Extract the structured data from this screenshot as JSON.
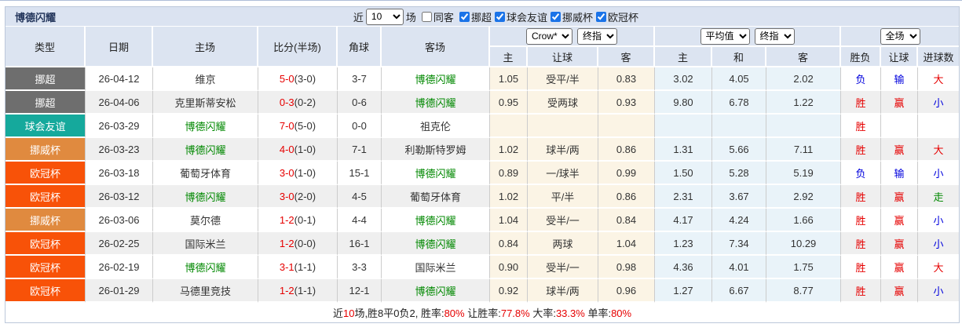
{
  "header": {
    "team": "博德闪耀",
    "near_label": "近",
    "matches_count": "10",
    "matches_unit": "场",
    "same_away": "同客",
    "leagues": [
      {
        "label": "挪超",
        "checked": true
      },
      {
        "label": "球会友谊",
        "checked": true
      },
      {
        "label": "挪威杯",
        "checked": true
      },
      {
        "label": "欧冠杯",
        "checked": true
      }
    ]
  },
  "columns": {
    "type": "类型",
    "date": "日期",
    "home": "主场",
    "score": "比分(半场)",
    "corner": "角球",
    "away": "客场",
    "handicap_sub": [
      "主",
      "让球",
      "客"
    ],
    "europe_sub": [
      "主",
      "和",
      "客"
    ],
    "result_sub": [
      "胜负",
      "让球",
      "进球数"
    ],
    "selects": {
      "bookmaker": "Crow*",
      "handicap_final": "终指",
      "europe_avg": "平均值",
      "europe_final": "终指",
      "scope": "全场"
    }
  },
  "type_colors": {
    "挪超": "#6e6e6e",
    "球会友谊": "#15a99c",
    "挪威杯": "#e08a3f",
    "欧冠杯": "#f85208"
  },
  "accent_colors": {
    "red": "#e60000",
    "blue": "#0000dd",
    "green": "#008800"
  },
  "rows": [
    {
      "type": "挪超",
      "date": "26-04-12",
      "home": "维京",
      "home_team": false,
      "score": "5-0",
      "half": "(3-0)",
      "corner": "3-7",
      "away": "博德闪耀",
      "away_team": true,
      "o1": "1.05",
      "o2": "受平/半",
      "o3": "0.83",
      "e1": "3.02",
      "e2": "4.05",
      "e3": "2.02",
      "result": "负",
      "result_c": "blue",
      "asian": "输",
      "asian_c": "blue",
      "goals": "大",
      "goals_c": "red"
    },
    {
      "type": "挪超",
      "date": "26-04-06",
      "home": "克里斯蒂安松",
      "home_team": false,
      "score": "0-3",
      "half": "(0-2)",
      "corner": "0-6",
      "away": "博德闪耀",
      "away_team": true,
      "o1": "0.95",
      "o2": "受两球",
      "o3": "0.93",
      "e1": "9.80",
      "e2": "6.78",
      "e3": "1.22",
      "result": "胜",
      "result_c": "red",
      "asian": "赢",
      "asian_c": "red",
      "goals": "小",
      "goals_c": "blue"
    },
    {
      "type": "球会友谊",
      "date": "26-03-29",
      "home": "博德闪耀",
      "home_team": true,
      "score": "7-0",
      "half": "(5-0)",
      "corner": "0-0",
      "away": "祖克伦",
      "away_team": false,
      "o1": "",
      "o2": "",
      "o3": "",
      "e1": "",
      "e2": "",
      "e3": "",
      "result": "胜",
      "result_c": "red",
      "asian": "",
      "asian_c": null,
      "goals": "",
      "goals_c": null
    },
    {
      "type": "挪威杯",
      "date": "26-03-23",
      "home": "博德闪耀",
      "home_team": true,
      "score": "4-0",
      "half": "(1-0)",
      "corner": "7-1",
      "away": "利勒斯特罗姆",
      "away_team": false,
      "o1": "1.02",
      "o2": "球半/两",
      "o3": "0.86",
      "e1": "1.31",
      "e2": "5.66",
      "e3": "7.11",
      "result": "胜",
      "result_c": "red",
      "asian": "赢",
      "asian_c": "red",
      "goals": "大",
      "goals_c": "red"
    },
    {
      "type": "欧冠杯",
      "date": "26-03-18",
      "home": "葡萄牙体育",
      "home_team": false,
      "score": "3-0",
      "half": "(1-0)",
      "corner": "15-1",
      "away": "博德闪耀",
      "away_team": true,
      "o1": "0.89",
      "o2": "一/球半",
      "o3": "0.99",
      "e1": "1.50",
      "e2": "5.28",
      "e3": "5.19",
      "result": "负",
      "result_c": "blue",
      "asian": "输",
      "asian_c": "blue",
      "goals": "小",
      "goals_c": "blue"
    },
    {
      "type": "欧冠杯",
      "date": "26-03-12",
      "home": "博德闪耀",
      "home_team": true,
      "score": "3-0",
      "half": "(2-0)",
      "corner": "4-5",
      "away": "葡萄牙体育",
      "away_team": false,
      "o1": "1.02",
      "o2": "平/半",
      "o3": "0.86",
      "e1": "2.31",
      "e2": "3.67",
      "e3": "2.92",
      "result": "胜",
      "result_c": "red",
      "asian": "赢",
      "asian_c": "red",
      "goals": "走",
      "goals_c": "green"
    },
    {
      "type": "挪威杯",
      "date": "26-03-06",
      "home": "莫尔德",
      "home_team": false,
      "score": "1-2",
      "half": "(0-1)",
      "corner": "4-4",
      "away": "博德闪耀",
      "away_team": true,
      "o1": "1.04",
      "o2": "受半/一",
      "o3": "0.84",
      "e1": "4.17",
      "e2": "4.24",
      "e3": "1.66",
      "result": "胜",
      "result_c": "red",
      "asian": "赢",
      "asian_c": "red",
      "goals": "小",
      "goals_c": "blue"
    },
    {
      "type": "欧冠杯",
      "date": "26-02-25",
      "home": "国际米兰",
      "home_team": false,
      "score": "1-2",
      "half": "(0-0)",
      "corner": "16-1",
      "away": "博德闪耀",
      "away_team": true,
      "o1": "0.84",
      "o2": "两球",
      "o3": "1.04",
      "e1": "1.23",
      "e2": "7.34",
      "e3": "10.29",
      "result": "胜",
      "result_c": "red",
      "asian": "赢",
      "asian_c": "red",
      "goals": "小",
      "goals_c": "blue"
    },
    {
      "type": "欧冠杯",
      "date": "26-02-19",
      "home": "博德闪耀",
      "home_team": true,
      "score": "3-1",
      "half": "(1-1)",
      "corner": "3-3",
      "away": "国际米兰",
      "away_team": false,
      "o1": "0.90",
      "o2": "受半/一",
      "o3": "0.98",
      "e1": "4.36",
      "e2": "4.01",
      "e3": "1.75",
      "result": "胜",
      "result_c": "red",
      "asian": "赢",
      "asian_c": "red",
      "goals": "大",
      "goals_c": "red"
    },
    {
      "type": "欧冠杯",
      "date": "26-01-29",
      "home": "马德里竞技",
      "home_team": false,
      "score": "1-2",
      "half": "(1-1)",
      "corner": "12-1",
      "away": "博德闪耀",
      "away_team": true,
      "o1": "0.92",
      "o2": "球半/两",
      "o3": "0.96",
      "e1": "1.27",
      "e2": "6.67",
      "e3": "8.77",
      "result": "胜",
      "result_c": "red",
      "asian": "赢",
      "asian_c": "red",
      "goals": "小",
      "goals_c": "blue"
    }
  ],
  "footer": {
    "segments": [
      {
        "text": "近",
        "red": false
      },
      {
        "text": "10",
        "red": true
      },
      {
        "text": "场,胜8平0负2, 胜率:",
        "red": false
      },
      {
        "text": "80%",
        "red": true
      },
      {
        "text": " 让胜率:",
        "red": false
      },
      {
        "text": "77.8%",
        "red": true
      },
      {
        "text": " 大率:",
        "red": false
      },
      {
        "text": "33.3%",
        "red": true
      },
      {
        "text": " 单率:",
        "red": false
      },
      {
        "text": "80%",
        "red": true
      }
    ]
  }
}
